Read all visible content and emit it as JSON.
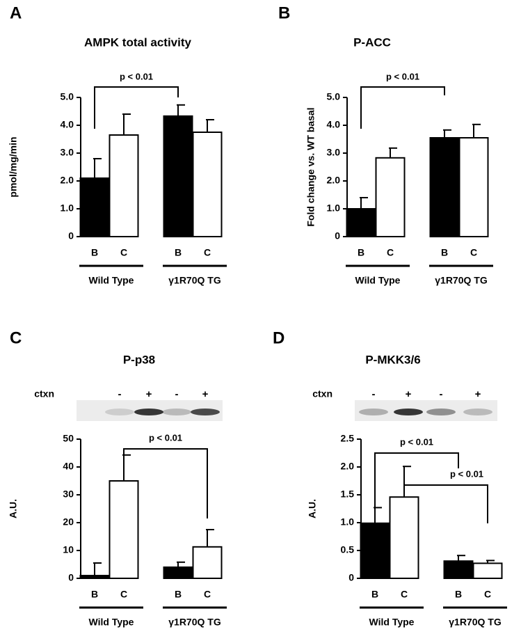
{
  "chart_data": [
    {
      "type": "bar",
      "panel": "A",
      "title": "AMPK total activity",
      "ylabel": "pmol/mg/min",
      "categories": [
        "Wild Type",
        "γ1R70Q TG"
      ],
      "series": [
        {
          "name": "B",
          "color": "#000000",
          "values": [
            2.1,
            4.33
          ],
          "errors": [
            0.7,
            0.4
          ]
        },
        {
          "name": "C",
          "color": "#ffffff",
          "values": [
            3.65,
            3.75
          ],
          "errors": [
            0.75,
            0.45
          ]
        }
      ],
      "ylim": [
        0,
        5
      ],
      "yticks": [
        0,
        {
          "value": 1,
          "label": "1.0"
        },
        {
          "value": 2,
          "label": "2.0"
        },
        {
          "value": 3,
          "label": "3.0"
        },
        {
          "value": 4,
          "label": "4.0"
        },
        {
          "value": 5,
          "label": "5.0"
        }
      ],
      "annotations": [
        "p < 0.01"
      ]
    },
    {
      "type": "bar",
      "panel": "B",
      "title": "P-ACC",
      "ylabel": "Fold change vs. WT basal",
      "categories": [
        "Wild Type",
        "γ1R70Q TG"
      ],
      "series": [
        {
          "name": "B",
          "color": "#000000",
          "values": [
            1.0,
            3.55
          ],
          "errors": [
            0.4,
            0.28
          ]
        },
        {
          "name": "C",
          "color": "#ffffff",
          "values": [
            2.83,
            3.55
          ],
          "errors": [
            0.35,
            0.48
          ]
        }
      ],
      "ylim": [
        0,
        5
      ],
      "yticks": [
        0,
        {
          "value": 1,
          "label": "1.0"
        },
        {
          "value": 2,
          "label": "2.0"
        },
        {
          "value": 3,
          "label": "3.0"
        },
        {
          "value": 4,
          "label": "4.0"
        },
        {
          "value": 5,
          "label": "5.0"
        }
      ],
      "annotations": [
        "p < 0.01"
      ]
    },
    {
      "type": "bar",
      "panel": "C",
      "title": "P-p38",
      "ylabel": "A.U.",
      "categories": [
        "Wild Type",
        "γ1R70Q TG"
      ],
      "blot": {
        "label": "ctxn",
        "lanes": [
          "-",
          "+",
          "-",
          "+"
        ]
      },
      "series": [
        {
          "name": "B",
          "color": "#000000",
          "values": [
            1,
            4
          ],
          "errors": [
            4.5,
            1.8
          ]
        },
        {
          "name": "C",
          "color": "#ffffff",
          "values": [
            35,
            11.3
          ],
          "errors": [
            9.3,
            6.2
          ]
        }
      ],
      "ylim": [
        0,
        50
      ],
      "yticks": [
        0,
        10,
        20,
        30,
        40,
        50
      ],
      "annotations": [
        "p < 0.01"
      ]
    },
    {
      "type": "bar",
      "panel": "D",
      "title": "P-MKK3/6",
      "ylabel": "A.U.",
      "categories": [
        "Wild Type",
        "γ1R70Q TG"
      ],
      "blot": {
        "label": "ctxn",
        "lanes": [
          "-",
          "+",
          "-",
          "+"
        ]
      },
      "series": [
        {
          "name": "B",
          "color": "#000000",
          "values": [
            0.99,
            0.31
          ],
          "errors": [
            0.28,
            0.1
          ]
        },
        {
          "name": "C",
          "color": "#ffffff",
          "values": [
            1.46,
            0.27
          ],
          "errors": [
            0.55,
            0.05
          ]
        }
      ],
      "ylim": [
        0,
        2.5
      ],
      "yticks": [
        0,
        0.5,
        {
          "value": 1,
          "label": "1.0"
        },
        1.5,
        {
          "value": 2,
          "label": "2.0"
        },
        2.5
      ],
      "annotations": [
        "p < 0.01",
        "p < 0.01"
      ]
    }
  ]
}
